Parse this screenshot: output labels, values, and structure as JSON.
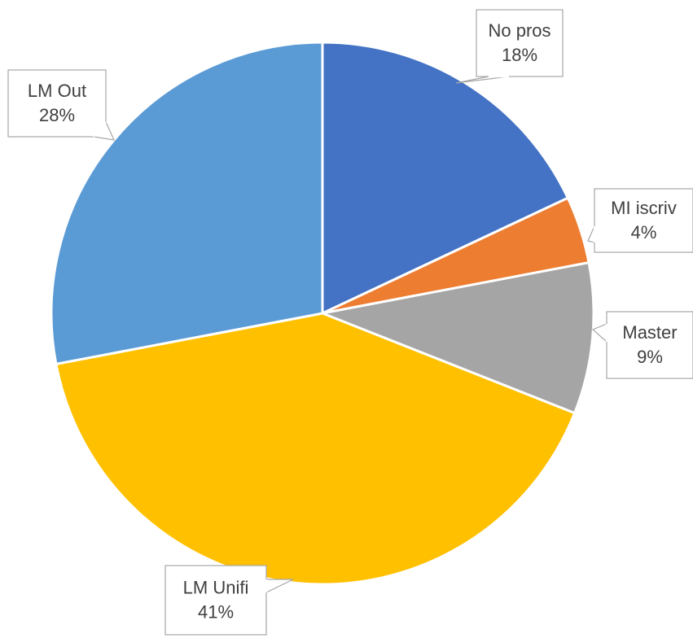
{
  "chart_data": {
    "type": "pie",
    "categories": [
      "No pros",
      "MI iscriv",
      "Master",
      "LM Unifi",
      "LM Out"
    ],
    "values": [
      18,
      4,
      9,
      41,
      28
    ],
    "value_labels": [
      "18%",
      "4%",
      "9%",
      "41%",
      "28%"
    ],
    "colors": [
      "#4472c4",
      "#ed7d31",
      "#a5a5a5",
      "#ffc000",
      "#5b9bd5"
    ]
  }
}
